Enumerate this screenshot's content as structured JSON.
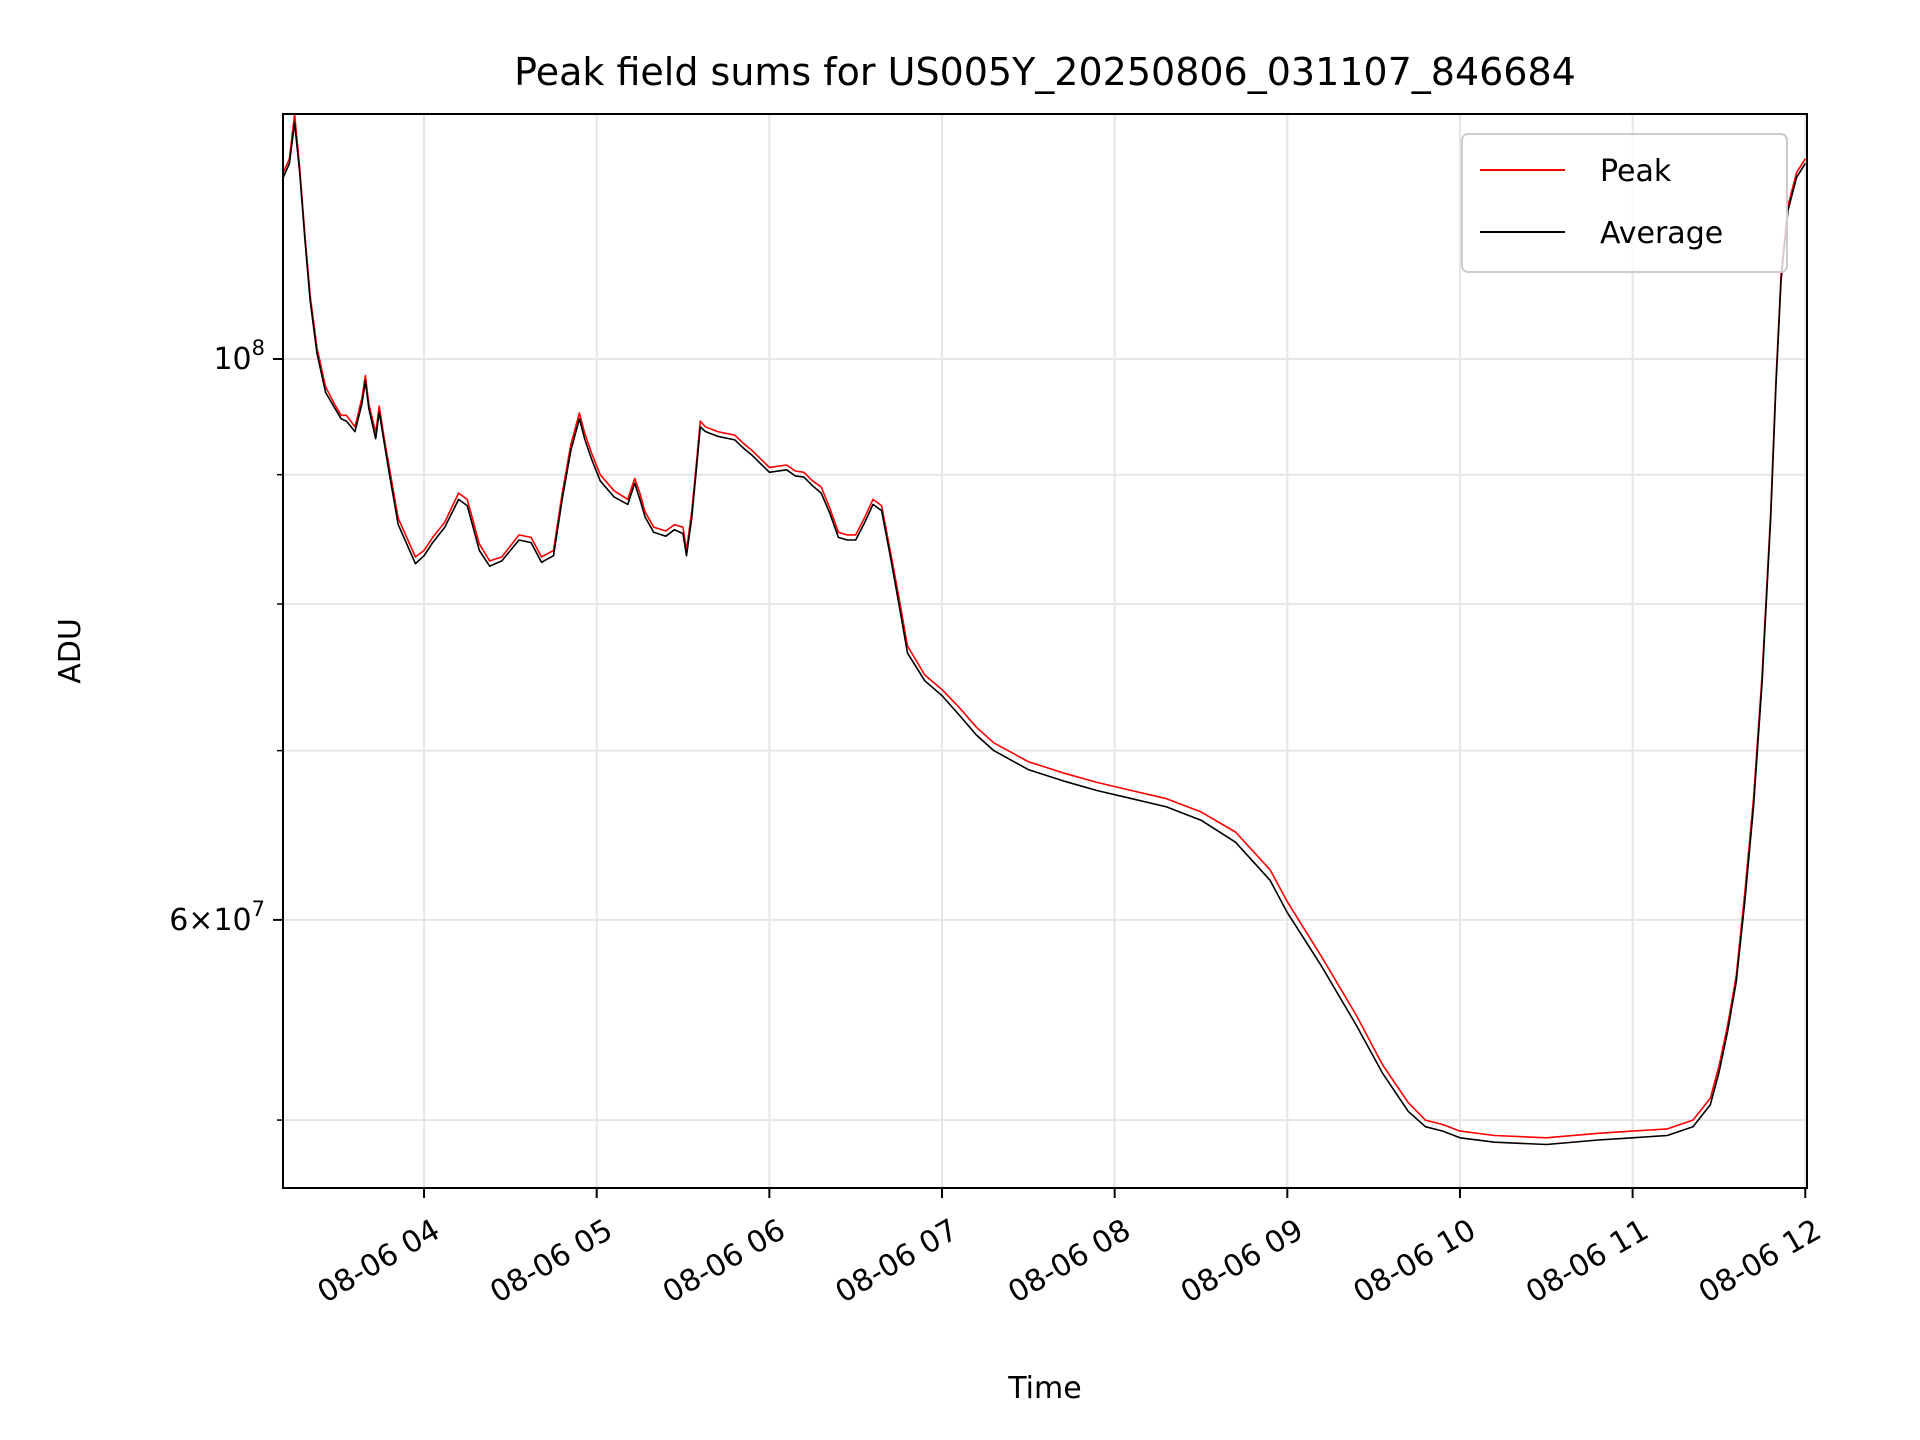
{
  "chart_data": {
    "type": "line",
    "title": "Peak field sums for US005Y_20250806_031107_846684",
    "xlabel": "Time",
    "ylabel": "ADU",
    "y_scale": "log",
    "x_unit": "hours since 08-06 00:00 (decimal)",
    "xlim": [
      3.183,
      12.01
    ],
    "ylim": [
      47000000,
      125000000
    ],
    "x_ticks": [
      {
        "value": 4,
        "label": "08-06 04"
      },
      {
        "value": 5,
        "label": "08-06 05"
      },
      {
        "value": 6,
        "label": "08-06 06"
      },
      {
        "value": 7,
        "label": "08-06 07"
      },
      {
        "value": 8,
        "label": "08-06 08"
      },
      {
        "value": 9,
        "label": "08-06 09"
      },
      {
        "value": 10,
        "label": "08-06 10"
      },
      {
        "value": 11,
        "label": "08-06 11"
      },
      {
        "value": 12,
        "label": "08-06 12"
      }
    ],
    "y_major_ticks": [
      {
        "value": 100000000,
        "base": "10",
        "exp": "8"
      },
      {
        "value": 60000000,
        "mant": "6",
        "base": "10",
        "exp": "7"
      }
    ],
    "y_minor_ticks": [
      50000000,
      70000000,
      80000000,
      90000000
    ],
    "grid": true,
    "legend": {
      "position": "top-right",
      "entries": [
        "Peak",
        "Average"
      ]
    },
    "series": [
      {
        "name": "Peak",
        "color": "#ff0000",
        "x": [
          3.185,
          3.22,
          3.25,
          3.28,
          3.31,
          3.34,
          3.38,
          3.43,
          3.48,
          3.52,
          3.55,
          3.6,
          3.64,
          3.66,
          3.68,
          3.72,
          3.74,
          3.77,
          3.8,
          3.85,
          3.95,
          4.0,
          4.05,
          4.12,
          4.2,
          4.25,
          4.28,
          4.32,
          4.38,
          4.45,
          4.55,
          4.62,
          4.68,
          4.75,
          4.8,
          4.85,
          4.9,
          4.93,
          4.97,
          5.02,
          5.1,
          5.18,
          5.22,
          5.25,
          5.28,
          5.33,
          5.4,
          5.45,
          5.5,
          5.52,
          5.55,
          5.58,
          5.6,
          5.63,
          5.7,
          5.8,
          5.85,
          5.9,
          6.0,
          6.1,
          6.15,
          6.2,
          6.25,
          6.3,
          6.35,
          6.4,
          6.45,
          6.5,
          6.55,
          6.6,
          6.65,
          6.7,
          6.75,
          6.8,
          6.9,
          7.0,
          7.1,
          7.2,
          7.3,
          7.5,
          7.7,
          7.9,
          8.1,
          8.3,
          8.5,
          8.7,
          8.9,
          9.0,
          9.2,
          9.4,
          9.55,
          9.7,
          9.8,
          9.9,
          10.0,
          10.2,
          10.5,
          10.8,
          11.0,
          11.2,
          11.35,
          11.45,
          11.5,
          11.55,
          11.6,
          11.65,
          11.7,
          11.75,
          11.8,
          11.83,
          11.86,
          11.9,
          11.95,
          12.0
        ],
        "y": [
          118500000,
          120000000,
          125000000,
          119000000,
          112000000,
          106000000,
          101000000,
          97500000,
          96000000,
          95000000,
          95000000,
          94000000,
          96500000,
          98500000,
          96000000,
          93500000,
          95800000,
          93000000,
          90500000,
          86500000,
          83500000,
          84000000,
          85000000,
          86200000,
          88500000,
          88000000,
          86500000,
          84500000,
          83200000,
          83500000,
          85200000,
          85000000,
          83500000,
          84000000,
          88500000,
          92500000,
          95200000,
          93500000,
          91800000,
          90000000,
          88700000,
          88000000,
          89700000,
          88500000,
          87000000,
          85800000,
          85500000,
          86000000,
          85800000,
          84000000,
          87000000,
          91300000,
          94500000,
          94000000,
          93600000,
          93300000,
          92600000,
          92000000,
          90600000,
          90800000,
          90300000,
          90200000,
          89500000,
          89000000,
          87300000,
          85400000,
          85200000,
          85200000,
          86500000,
          88000000,
          87500000,
          84000000,
          80500000,
          77000000,
          75000000,
          74000000,
          72800000,
          71500000,
          70500000,
          69300000,
          68600000,
          68000000,
          67500000,
          67000000,
          66200000,
          65000000,
          62800000,
          61000000,
          58000000,
          55000000,
          52600000,
          50800000,
          50000000,
          49800000,
          49500000,
          49300000,
          49200000,
          49400000,
          49500000,
          49600000,
          50000000,
          51000000,
          52500000,
          54500000,
          57000000,
          61500000,
          67000000,
          75000000,
          87000000,
          98000000,
          108000000,
          115000000,
          118500000,
          120000000
        ]
      },
      {
        "name": "Average",
        "color": "#000000",
        "x": [
          3.185,
          3.22,
          3.25,
          3.28,
          3.31,
          3.34,
          3.38,
          3.43,
          3.48,
          3.52,
          3.55,
          3.6,
          3.64,
          3.66,
          3.68,
          3.72,
          3.74,
          3.77,
          3.8,
          3.85,
          3.95,
          4.0,
          4.05,
          4.12,
          4.2,
          4.25,
          4.28,
          4.32,
          4.38,
          4.45,
          4.55,
          4.62,
          4.68,
          4.75,
          4.8,
          4.85,
          4.9,
          4.93,
          4.97,
          5.02,
          5.1,
          5.18,
          5.22,
          5.25,
          5.28,
          5.33,
          5.4,
          5.45,
          5.5,
          5.52,
          5.55,
          5.58,
          5.6,
          5.63,
          5.7,
          5.8,
          5.85,
          5.9,
          6.0,
          6.1,
          6.15,
          6.2,
          6.25,
          6.3,
          6.35,
          6.4,
          6.45,
          6.5,
          6.55,
          6.6,
          6.65,
          6.7,
          6.75,
          6.8,
          6.9,
          7.0,
          7.1,
          7.2,
          7.3,
          7.5,
          7.7,
          7.9,
          8.1,
          8.3,
          8.5,
          8.7,
          8.9,
          9.0,
          9.2,
          9.4,
          9.55,
          9.7,
          9.8,
          9.9,
          10.0,
          10.2,
          10.5,
          10.8,
          11.0,
          11.2,
          11.35,
          11.45,
          11.5,
          11.55,
          11.6,
          11.65,
          11.7,
          11.75,
          11.8,
          11.83,
          11.86,
          11.9,
          11.95,
          12.0
        ],
        "y": [
          118000000,
          119500000,
          124000000,
          118500000,
          111500000,
          105500000,
          100500000,
          97000000,
          95700000,
          94700000,
          94500000,
          93600000,
          96000000,
          98000000,
          95600000,
          93000000,
          95300000,
          92600000,
          90000000,
          86000000,
          83000000,
          83600000,
          84600000,
          85800000,
          88000000,
          87500000,
          86000000,
          84000000,
          82800000,
          83200000,
          84800000,
          84600000,
          83100000,
          83600000,
          88000000,
          92000000,
          94700000,
          93000000,
          91300000,
          89500000,
          88200000,
          87600000,
          89300000,
          88000000,
          86600000,
          85400000,
          85100000,
          85600000,
          85300000,
          83600000,
          86500000,
          90800000,
          94000000,
          93600000,
          93200000,
          92900000,
          92200000,
          91600000,
          90200000,
          90400000,
          89900000,
          89800000,
          89100000,
          88500000,
          86900000,
          85000000,
          84800000,
          84800000,
          86100000,
          87600000,
          87100000,
          83600000,
          80000000,
          76500000,
          74600000,
          73600000,
          72300000,
          71000000,
          70000000,
          68800000,
          68100000,
          67500000,
          67000000,
          66500000,
          65700000,
          64400000,
          62200000,
          60400000,
          57500000,
          54500000,
          52200000,
          50400000,
          49700000,
          49500000,
          49200000,
          49000000,
          48900000,
          49100000,
          49200000,
          49300000,
          49700000,
          50700000,
          52200000,
          54200000,
          56700000,
          61000000,
          66500000,
          74500000,
          86500000,
          97500000,
          107500000,
          114500000,
          118000000,
          119500000
        ]
      }
    ]
  }
}
